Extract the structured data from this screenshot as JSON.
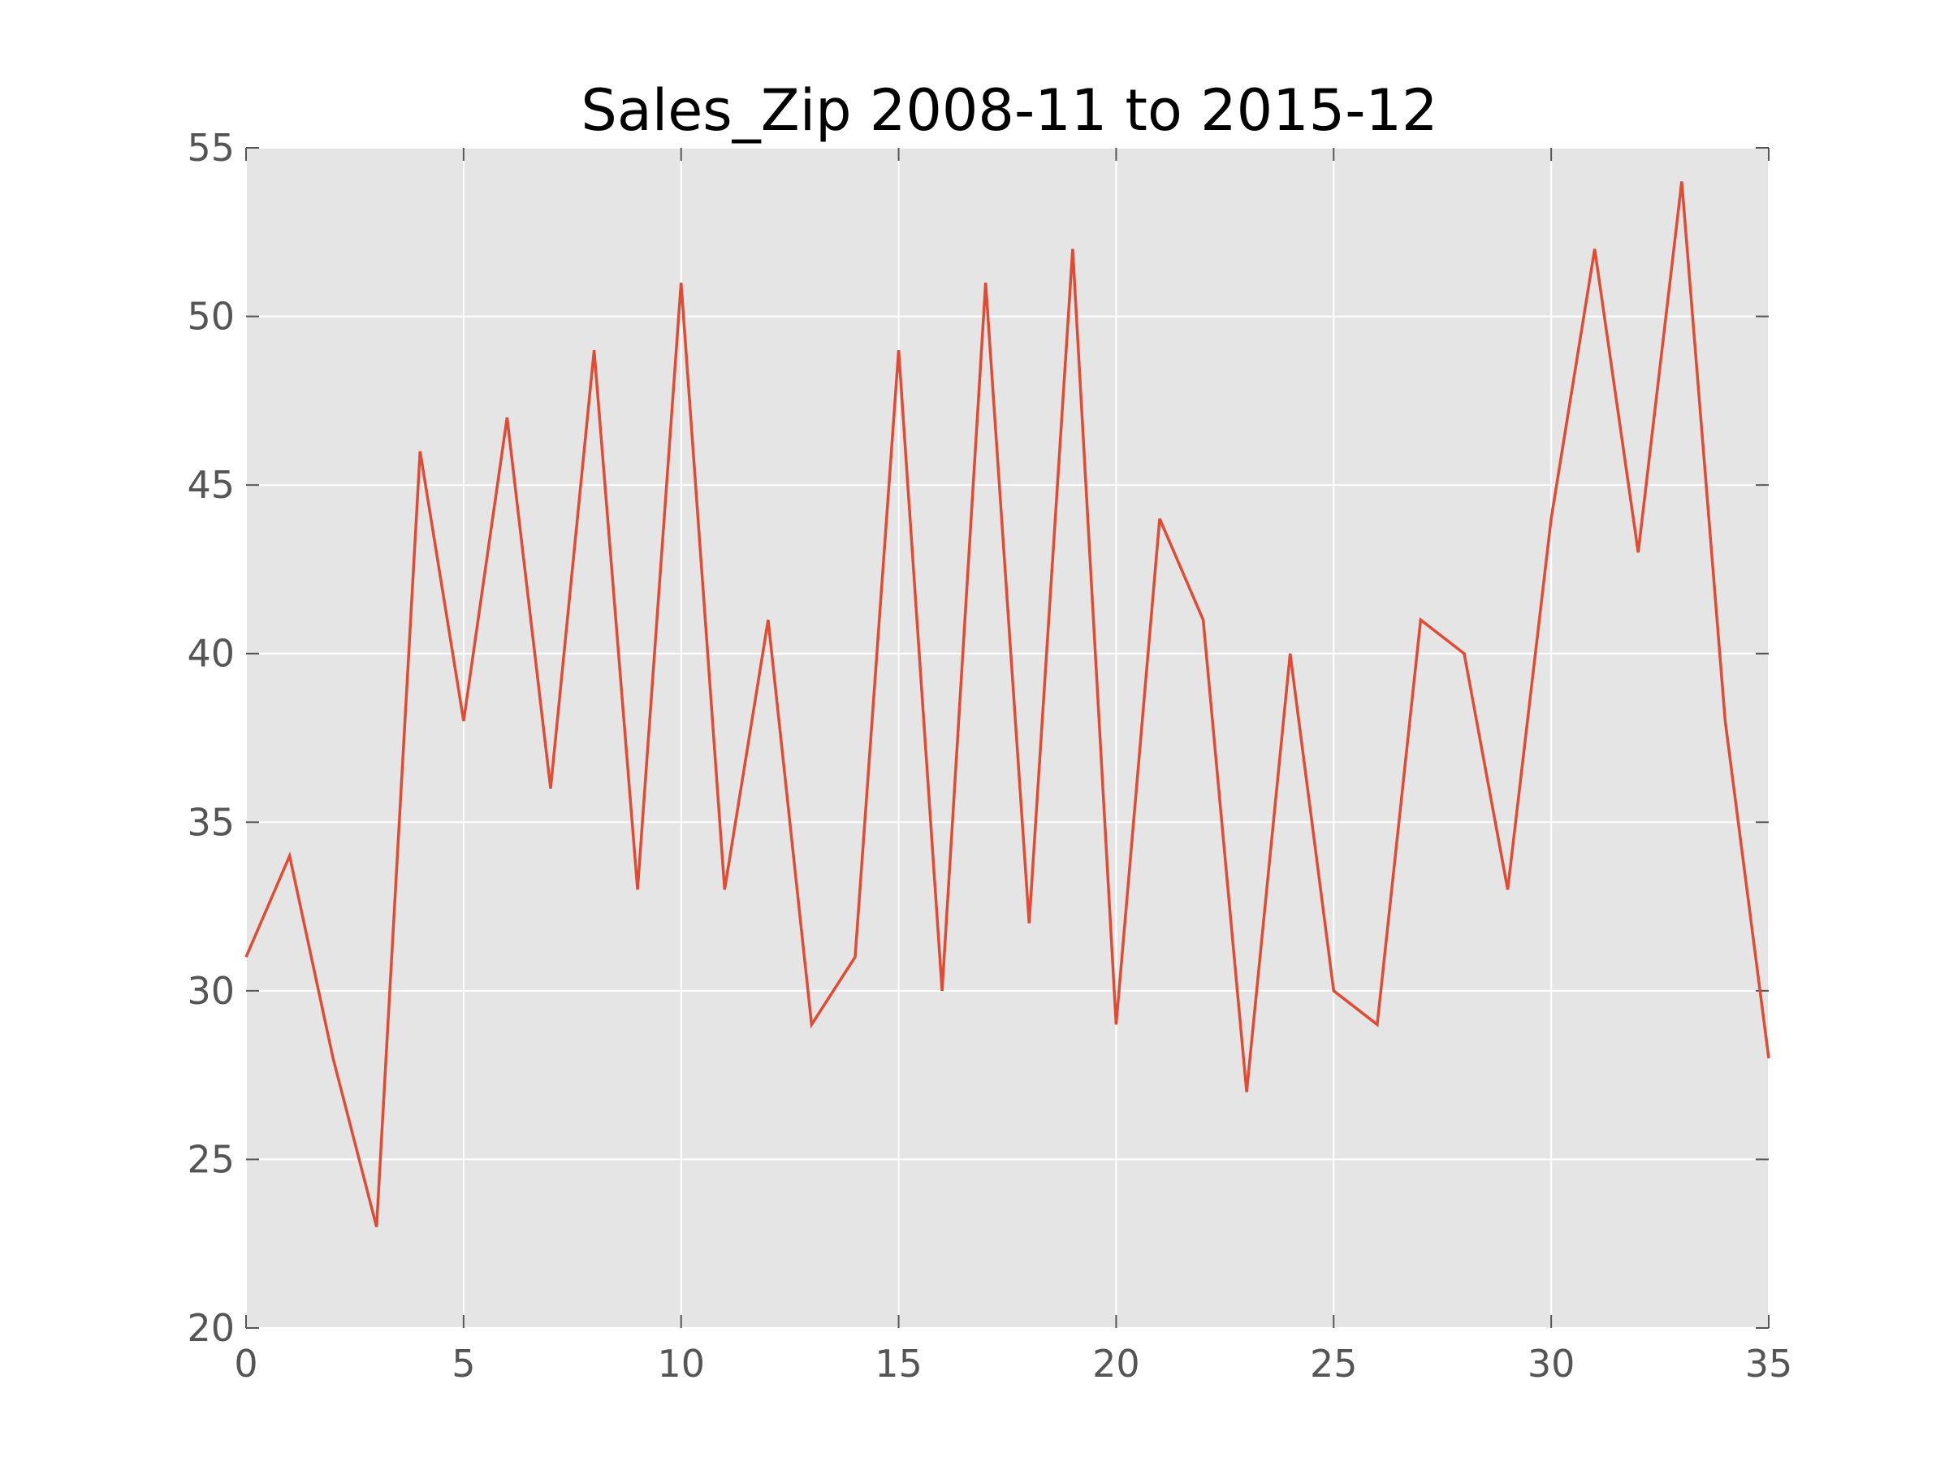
{
  "chart_data": {
    "type": "line",
    "title": "Sales_Zip 2008-11 to 2015-12",
    "xlabel": "",
    "ylabel": "",
    "xlim": [
      0,
      35
    ],
    "ylim": [
      20,
      55
    ],
    "xticks": [
      0,
      5,
      10,
      15,
      20,
      25,
      30,
      35
    ],
    "yticks": [
      20,
      25,
      30,
      35,
      40,
      45,
      50,
      55
    ],
    "grid": true,
    "background": "#e5e5e5",
    "series": [
      {
        "color": "#e24a33",
        "x": [
          0,
          1,
          2,
          3,
          4,
          5,
          6,
          7,
          8,
          9,
          10,
          11,
          12,
          13,
          14,
          15,
          16,
          17,
          18,
          19,
          20,
          21,
          22,
          23,
          24,
          25,
          26,
          27,
          28,
          29,
          30,
          31,
          32,
          33,
          34,
          35
        ],
        "y": [
          31,
          34,
          28,
          23,
          46,
          38,
          47,
          36,
          49,
          33,
          51,
          33,
          41,
          29,
          31,
          49,
          30,
          51,
          32,
          52,
          29,
          44,
          41,
          27,
          40,
          30,
          29,
          41,
          40,
          33,
          44,
          52,
          43,
          54,
          38,
          28
        ]
      }
    ]
  }
}
